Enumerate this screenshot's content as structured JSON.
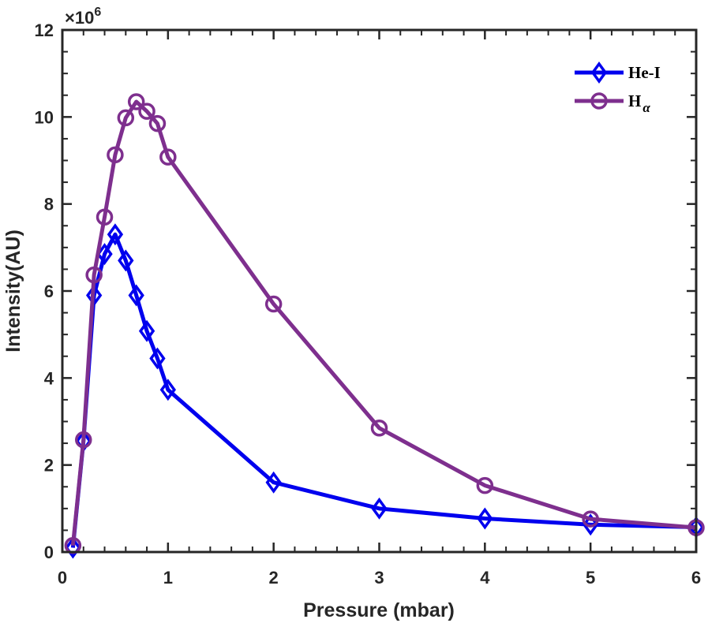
{
  "chart_data": {
    "type": "line",
    "title": "",
    "xlabel": "Pressure (mbar)",
    "ylabel": "Intensity(AU)",
    "y_exponent_label": "×10",
    "y_exponent_power": "6",
    "y_scale": 1000000,
    "xlim": [
      0,
      6
    ],
    "ylim": [
      0,
      12
    ],
    "xticks": [
      0,
      1,
      2,
      3,
      4,
      5,
      6
    ],
    "yticks": [
      0,
      2,
      4,
      6,
      8,
      10,
      12
    ],
    "xtick_labels": [
      "0",
      "1",
      "2",
      "3",
      "4",
      "5",
      "6"
    ],
    "ytick_labels": [
      "0",
      "2",
      "4",
      "6",
      "8",
      "10",
      "12"
    ],
    "legend_position": "top-right",
    "grid": false,
    "series": [
      {
        "name": "He-I",
        "color": "#0000ee",
        "marker": "diamond",
        "x": [
          0.1,
          0.2,
          0.3,
          0.4,
          0.5,
          0.6,
          0.7,
          0.8,
          0.9,
          1,
          2,
          3,
          4,
          5,
          6
        ],
        "values": [
          0.1,
          2.55,
          5.9,
          6.85,
          7.3,
          6.7,
          5.9,
          5.08,
          4.45,
          3.73,
          1.6,
          1.0,
          0.77,
          0.63,
          0.57
        ]
      },
      {
        "name": "H",
        "name_subscript": "α",
        "color": "#7e2f8e",
        "marker": "circle",
        "x": [
          0.1,
          0.2,
          0.3,
          0.4,
          0.5,
          0.6,
          0.7,
          0.8,
          0.9,
          1,
          2,
          3,
          4,
          5,
          6
        ],
        "values": [
          0.15,
          2.58,
          6.37,
          7.7,
          9.13,
          9.98,
          10.35,
          10.13,
          9.85,
          9.08,
          5.7,
          2.85,
          1.53,
          0.76,
          0.56
        ]
      }
    ]
  }
}
